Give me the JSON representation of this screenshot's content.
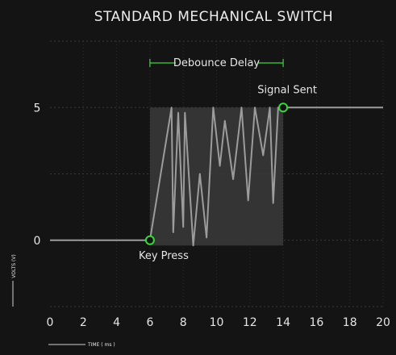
{
  "chart_data": {
    "type": "line",
    "title": "STANDARD MECHANICAL SWITCH",
    "xlabel": "TIME ( ms )",
    "ylabel": "VOLTS (V)",
    "xlim": [
      0,
      20
    ],
    "ylim": [
      -2.5,
      7.5
    ],
    "x_ticks": [
      0,
      2,
      4,
      6,
      8,
      10,
      12,
      14,
      16,
      18,
      20
    ],
    "y_ticks": [
      0,
      5
    ],
    "grid": true,
    "debounce_window": {
      "label": "Debounce Delay",
      "x_start": 6,
      "x_end": 14,
      "y_min": -0.2,
      "y_max": 5
    },
    "annotations": [
      {
        "label": "Key Press",
        "x": 6,
        "y": 0
      },
      {
        "label": "Signal Sent",
        "x": 14,
        "y": 5
      }
    ],
    "series": [
      {
        "x": [
          0,
          6,
          7.3,
          7.4,
          7.7,
          8.0,
          8.1,
          8.6,
          9.0,
          9.4,
          9.8,
          10.2,
          10.5,
          11.0,
          11.5,
          11.9,
          12.3,
          12.8,
          13.2,
          13.4,
          13.7,
          14,
          20
        ],
        "y": [
          0,
          0,
          5,
          0.3,
          4.8,
          0.5,
          4.8,
          -0.2,
          2.5,
          0.1,
          5,
          2.8,
          4.5,
          2.3,
          5,
          1.5,
          5,
          3.2,
          5,
          1.4,
          5,
          5,
          5
        ]
      }
    ],
    "colors": {
      "signal": "#9c9c9c",
      "window": "#3a3a3a",
      "marker": "#3bd63b",
      "bracket": "#3bd63b"
    }
  }
}
